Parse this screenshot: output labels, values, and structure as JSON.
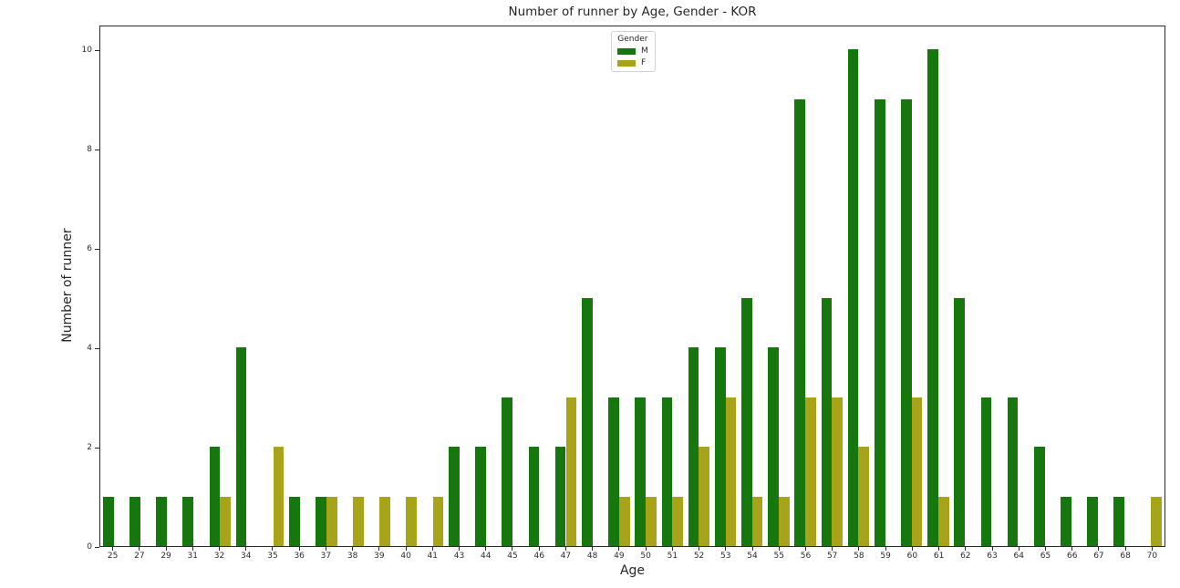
{
  "chart_data": {
    "type": "bar",
    "title": "Number of runner by Age, Gender - KOR",
    "xlabel": "Age",
    "ylabel": "Number of runner",
    "categories": [
      "25",
      "27",
      "29",
      "31",
      "32",
      "34",
      "35",
      "36",
      "37",
      "38",
      "39",
      "40",
      "41",
      "43",
      "44",
      "45",
      "46",
      "47",
      "48",
      "49",
      "50",
      "51",
      "52",
      "53",
      "54",
      "55",
      "56",
      "57",
      "58",
      "59",
      "60",
      "61",
      "62",
      "63",
      "64",
      "65",
      "66",
      "67",
      "68",
      "70"
    ],
    "series": [
      {
        "name": "M",
        "color": "#17770f",
        "values": [
          1,
          1,
          1,
          1,
          2,
          4,
          0,
          1,
          1,
          0,
          0,
          0,
          0,
          2,
          2,
          3,
          2,
          2,
          5,
          3,
          3,
          3,
          4,
          4,
          5,
          4,
          9,
          5,
          10,
          9,
          9,
          10,
          5,
          3,
          3,
          2,
          1,
          1,
          1,
          0
        ]
      },
      {
        "name": "F",
        "color": "#a8a41a",
        "values": [
          0,
          0,
          0,
          0,
          1,
          0,
          2,
          0,
          1,
          1,
          1,
          1,
          1,
          0,
          0,
          0,
          0,
          3,
          0,
          1,
          1,
          1,
          2,
          3,
          1,
          1,
          3,
          3,
          2,
          0,
          3,
          1,
          0,
          0,
          0,
          0,
          0,
          0,
          0,
          1
        ]
      }
    ],
    "yticks": [
      0,
      2,
      4,
      6,
      8,
      10
    ],
    "ylim": [
      0,
      10.5
    ],
    "grid": false,
    "legend": {
      "title": "Gender",
      "position": "upper center"
    }
  },
  "colors": {
    "male": "#17770f",
    "female": "#a8a41a",
    "spine": "#2b2b2b",
    "text": "#262626",
    "background": "#ffffff"
  }
}
